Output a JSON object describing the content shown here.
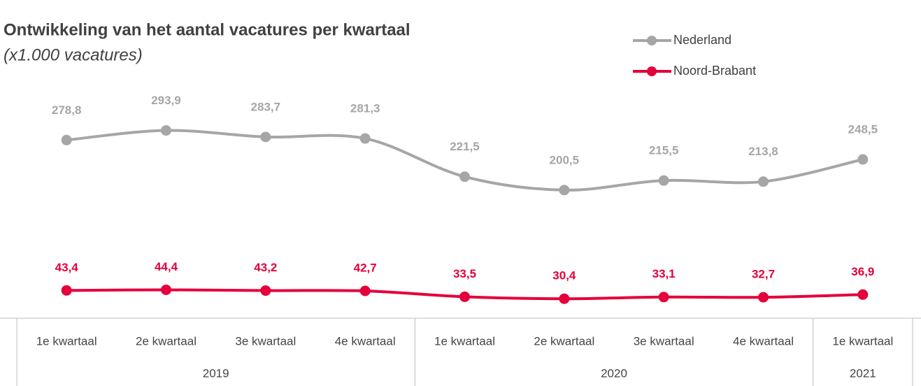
{
  "chart_data": {
    "type": "line",
    "title": "Ontwikkeling van het aantal vacatures per kwartaal",
    "subtitle": "(x1.000 vacatures)",
    "categories": [
      "1e kwartaal",
      "2e kwartaal",
      "3e kwartaal",
      "4e kwartaal",
      "1e kwartaal",
      "2e kwartaal",
      "3e kwartaal",
      "4e kwartaal",
      "1e kwartaal"
    ],
    "category_groups": [
      {
        "label": "2019",
        "span": 4
      },
      {
        "label": "2020",
        "span": 4
      },
      {
        "label": "2021",
        "span": 1
      }
    ],
    "series": [
      {
        "name": "Nederland",
        "color": "#a6a6a6",
        "values": [
          278.8,
          293.9,
          283.7,
          281.3,
          221.5,
          200.5,
          215.5,
          213.8,
          248.5
        ],
        "value_labels": [
          "278,8",
          "293,9",
          "283,7",
          "281,3",
          "221,5",
          "200,5",
          "215,5",
          "213,8",
          "248,5"
        ]
      },
      {
        "name": "Noord-Brabant",
        "color": "#e4003a",
        "values": [
          43.4,
          44.4,
          43.2,
          42.7,
          33.5,
          30.4,
          33.1,
          32.7,
          36.9
        ],
        "value_labels": [
          "43,4",
          "44,4",
          "43,2",
          "42,7",
          "33,5",
          "30,4",
          "33,1",
          "32,7",
          "36,9"
        ]
      }
    ],
    "ylim": [
      0,
      370
    ],
    "smooth": true,
    "legend": "top-right"
  }
}
